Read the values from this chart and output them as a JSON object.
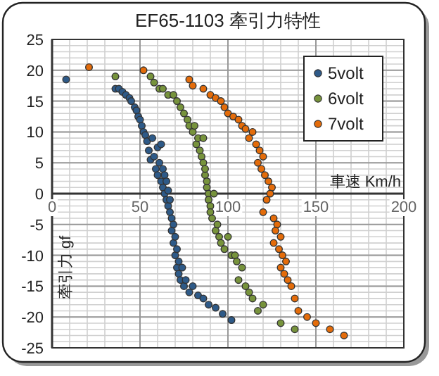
{
  "chart_data": {
    "type": "scatter",
    "title": "EF65-1103 牽引力特性",
    "xlabel": "車速 Km/h",
    "ylabel": "牽引力 gf",
    "xlim": [
      0,
      200
    ],
    "ylim": [
      -25,
      25
    ],
    "xticks": [
      0,
      50,
      100,
      150,
      200
    ],
    "yticks": [
      -25,
      -20,
      -15,
      -10,
      -5,
      0,
      5,
      10,
      15,
      20,
      25
    ],
    "grid": true,
    "legend": "top right",
    "marker": "circle",
    "series": [
      {
        "name": "5volt",
        "color": "#2e5a88",
        "x": [
          8,
          36,
          38,
          40,
          42,
          44,
          45,
          47,
          48,
          49,
          50,
          51,
          52,
          53,
          54,
          55,
          56,
          57,
          58,
          59,
          60,
          60,
          61,
          62,
          62,
          63,
          63,
          64,
          64,
          65,
          65,
          66,
          66,
          67,
          67,
          68,
          68,
          69,
          69,
          70,
          70,
          71,
          71,
          72,
          72,
          73,
          74,
          75,
          76,
          78,
          80,
          83,
          86,
          89,
          93,
          97,
          102
        ],
        "values": [
          18.5,
          17,
          17,
          16.5,
          16,
          15.5,
          15,
          14,
          13.5,
          12.5,
          12,
          11,
          10,
          9.5,
          8.5,
          7,
          5.5,
          9,
          6,
          4,
          3,
          7.5,
          5,
          2,
          8,
          1,
          4,
          0,
          3,
          -1,
          2,
          0.5,
          -2,
          -1,
          -3,
          -4,
          -6,
          -5,
          -8,
          -7,
          -10,
          -9,
          -12,
          -11,
          -13,
          -14,
          -12,
          -15,
          -14,
          -16,
          -15,
          -16.5,
          -17,
          -18,
          -18.5,
          -19.5,
          -20.5
        ]
      },
      {
        "name": "6volt",
        "color": "#77933c",
        "x": [
          36,
          56,
          58,
          61,
          63,
          66,
          69,
          71,
          73,
          75,
          77,
          78,
          80,
          81,
          82,
          83,
          84,
          85,
          86,
          86,
          87,
          87,
          88,
          88,
          89,
          89,
          90,
          90,
          91,
          92,
          93,
          94,
          95,
          96,
          98,
          100,
          102,
          104,
          105,
          106,
          108,
          110,
          112,
          114,
          117,
          120,
          130,
          138
        ],
        "values": [
          19,
          19,
          18,
          17,
          17,
          16,
          16,
          15,
          14,
          13,
          12,
          11,
          10,
          11,
          8,
          9,
          7,
          6,
          5,
          9,
          3,
          4,
          1,
          2,
          0,
          -1,
          -2,
          -3,
          -4,
          0,
          -6,
          -5,
          -7,
          -8,
          -9,
          -7,
          -10,
          -10,
          -11,
          -14,
          -12,
          -15,
          -16,
          -17,
          -19,
          -18,
          -21,
          -22
        ]
      },
      {
        "name": "7volt",
        "color": "#e46c0a",
        "x": [
          21,
          52,
          78,
          80,
          86,
          90,
          93,
          96,
          98,
          100,
          103,
          106,
          108,
          110,
          112,
          114,
          116,
          118,
          120,
          117,
          119,
          121,
          123,
          125,
          124,
          122,
          120,
          126,
          128,
          127,
          130,
          126,
          129,
          131,
          133,
          130,
          132,
          134,
          136,
          138,
          140,
          145,
          150,
          158,
          166
        ],
        "values": [
          20.5,
          20,
          18.5,
          17.5,
          17,
          16,
          15.5,
          15,
          14,
          13,
          12.5,
          12,
          11,
          10.5,
          9,
          10,
          8,
          7,
          6,
          5,
          4,
          3,
          2,
          1,
          0,
          -1,
          -3,
          -4,
          -5,
          -6,
          -7,
          -8,
          -9,
          -10,
          -11,
          -12,
          -13,
          -14,
          -15,
          -17,
          -19,
          -20,
          -21,
          -22,
          -23
        ]
      }
    ]
  }
}
